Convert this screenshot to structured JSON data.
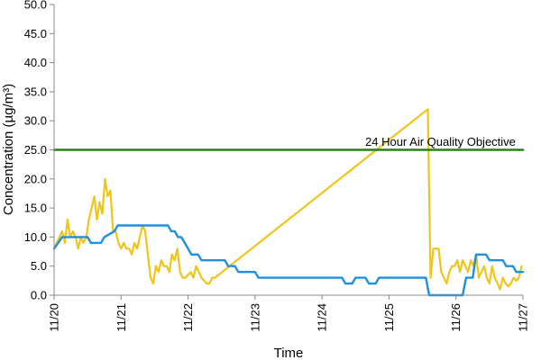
{
  "chart_data": {
    "type": "line",
    "xlabel": "Time",
    "ylabel": "Concentration (µg/m³)",
    "x_ticks": [
      "11/20",
      "11/21",
      "11/22",
      "11/23",
      "11/24",
      "11/25",
      "11/26",
      "11/27"
    ],
    "y_ticks": [
      "0.0",
      "5.0",
      "10.0",
      "15.0",
      "20.0",
      "25.0",
      "30.0",
      "35.0",
      "40.0",
      "45.0",
      "50.0"
    ],
    "xlim": [
      "11/20",
      "11/27"
    ],
    "ylim": [
      0,
      50
    ],
    "grid": false,
    "legend": "none",
    "annotation": "24 Hour Air Quality Objective",
    "objective_value": 25,
    "series": [
      {
        "color": "#F0C419",
        "x_days": [
          0.0,
          0.04,
          0.08,
          0.12,
          0.16,
          0.2,
          0.24,
          0.28,
          0.32,
          0.36,
          0.4,
          0.44,
          0.48,
          0.52,
          0.56,
          0.6,
          0.64,
          0.68,
          0.72,
          0.76,
          0.8,
          0.84,
          0.88,
          0.92,
          0.96,
          1.0,
          1.04,
          1.08,
          1.12,
          1.16,
          1.2,
          1.24,
          1.28,
          1.32,
          1.36,
          1.4,
          1.44,
          1.48,
          1.52,
          1.56,
          1.6,
          1.64,
          1.68,
          1.72,
          1.76,
          1.8,
          1.84,
          1.88,
          1.92,
          1.96,
          2.0,
          2.04,
          2.08,
          2.12,
          2.16,
          2.2,
          2.24,
          2.28,
          2.32,
          2.36,
          2.4,
          5.58,
          5.62,
          5.66,
          5.7,
          5.74,
          5.78,
          5.82,
          5.86,
          5.9,
          5.94,
          5.98,
          6.02,
          6.06,
          6.1,
          6.14,
          6.18,
          6.22,
          6.26,
          6.3,
          6.34,
          6.38,
          6.42,
          6.46,
          6.5,
          6.54,
          6.58,
          6.62,
          6.66,
          6.7,
          6.74,
          6.78,
          6.82,
          6.86,
          6.9,
          6.94,
          6.98
        ],
        "values": [
          8,
          9,
          10,
          11,
          9,
          13,
          10,
          11,
          10,
          8,
          10,
          9,
          10,
          13,
          15,
          17,
          13,
          16,
          14,
          20,
          17,
          18,
          11,
          11,
          9,
          8,
          9,
          8,
          8,
          7,
          9,
          8,
          10,
          12,
          11,
          7,
          3,
          2,
          5,
          4,
          6,
          5,
          5,
          4,
          7,
          6,
          8,
          4,
          3,
          3,
          3.5,
          4,
          3,
          5,
          4,
          3,
          2.5,
          2,
          2,
          3,
          3,
          32,
          3,
          8,
          8,
          8,
          4,
          3,
          2,
          4,
          5,
          5,
          6,
          4,
          6,
          5,
          4,
          6,
          5,
          7,
          3,
          4,
          5,
          3,
          2,
          5,
          3,
          2,
          1,
          3,
          2,
          1.5,
          2,
          3,
          2.5,
          3,
          5
        ]
      },
      {
        "color": "#1E90E0",
        "x_days": [
          0.0,
          0.06,
          0.12,
          0.5,
          0.55,
          0.7,
          0.75,
          0.9,
          0.95,
          1.7,
          1.75,
          1.8,
          1.85,
          1.9,
          1.95,
          2.0,
          2.05,
          2.15,
          2.2,
          2.55,
          2.6,
          2.7,
          2.75,
          3.0,
          3.05,
          4.3,
          4.35,
          4.45,
          4.5,
          4.65,
          4.7,
          4.8,
          4.85,
          5.55,
          5.6,
          6.1,
          6.15,
          6.25,
          6.3,
          6.45,
          6.5,
          6.7,
          6.75,
          6.85,
          6.9,
          7.0
        ],
        "values": [
          8,
          9,
          10,
          10,
          9,
          9,
          10,
          11,
          12,
          12,
          11,
          11,
          10,
          10,
          9,
          8,
          7,
          7,
          6,
          6,
          5,
          5,
          4,
          4,
          3,
          3,
          2,
          2,
          3,
          3,
          2,
          2,
          3,
          3,
          0,
          0,
          3,
          3,
          7,
          7,
          6,
          6,
          5,
          5,
          4,
          4
        ]
      },
      {
        "color": "#2E7D1E",
        "x_days": [
          0,
          7
        ],
        "values": [
          25,
          25
        ]
      }
    ]
  }
}
